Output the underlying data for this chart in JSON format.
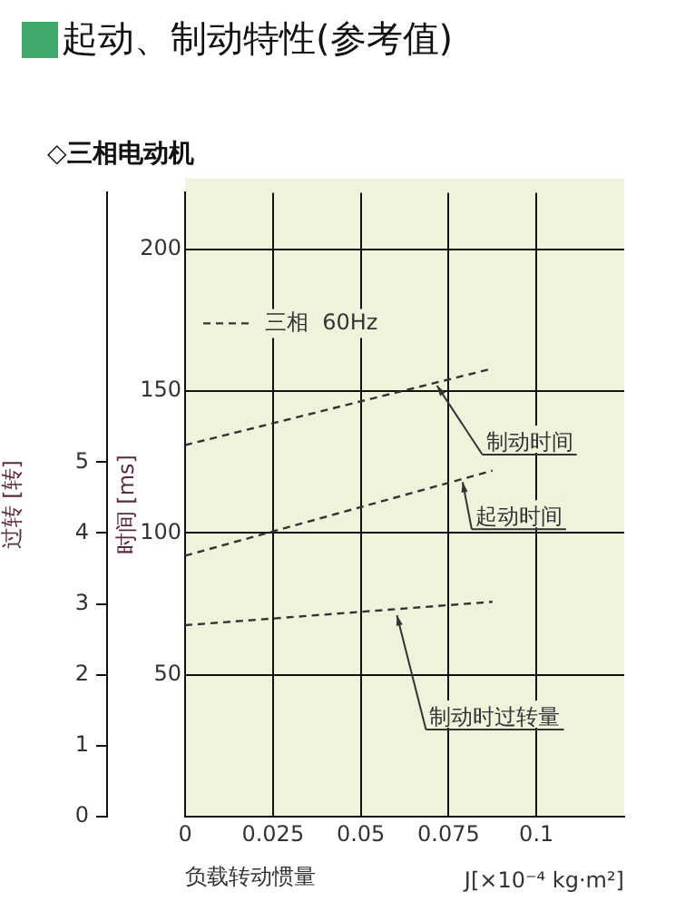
{
  "chart_data": {
    "type": "line",
    "title": "起动、制动特性(参考值)",
    "subtitle": "◇三相电动机",
    "xlabel": "负载转动惯量",
    "ylabel": "时间 [ms]",
    "y2label": "过转 [转]",
    "xlim": [
      0,
      0.125
    ],
    "xticks": [
      0,
      0.025,
      0.05,
      0.075,
      0.1
    ],
    "ylim": [
      0,
      220
    ],
    "yticks": [
      50,
      100,
      150,
      200
    ],
    "y2lim": [
      0,
      8.8
    ],
    "y2ticks": [
      0,
      1,
      2,
      3,
      4,
      5
    ],
    "x": [
      0,
      0.0875
    ],
    "grid": true,
    "line_style": "dashed",
    "marker": "none",
    "series": [
      {
        "color": "#333333",
        "values": [
          131,
          158
        ]
      },
      {
        "color": "#333333",
        "values": [
          92,
          122
        ]
      },
      {
        "color": "#333333",
        "values": [
          2.7,
          3.03
        ],
        "axis": "y2"
      }
    ],
    "annotations": [
      {
        "text": "制动时间",
        "x": 0.0717,
        "y": 152
      },
      {
        "text": "起动时间",
        "x": 0.079,
        "y": 118
      },
      {
        "text": "制动时过转量",
        "x": 0.0603,
        "y": 71
      },
      "三相  60Hz",
      "J[×10⁻⁴ kg·m²]"
    ]
  }
}
